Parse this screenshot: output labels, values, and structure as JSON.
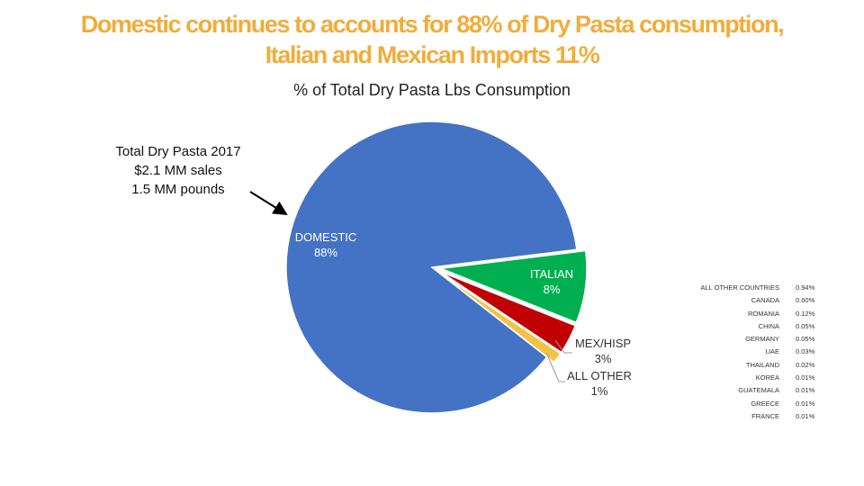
{
  "page_title": {
    "line1": "Domestic continues to accounts for 88% of Dry Pasta consumption,",
    "line2": "Italian and Mexican Imports 11%"
  },
  "note": {
    "line1": "Total Dry Pasta 2017",
    "line2": "$2.1 MM sales",
    "line3": "1.5 MM pounds"
  },
  "colors": {
    "title": "#f0ad3c",
    "domestic": "#4472c4",
    "italian": "#00b050",
    "mex_hisp": "#c00000",
    "all_other": "#f5c242"
  },
  "chart_data": {
    "type": "pie",
    "title": "% of Total Dry Pasta Lbs Consumption",
    "slices": [
      {
        "label": "DOMESTIC",
        "value_label": "88%",
        "value": 87.5,
        "color": "#4472c4",
        "label_color": "#ffffff"
      },
      {
        "label": "ITALIAN",
        "value_label": "8%",
        "value": 8.0,
        "color": "#00b050",
        "label_color": "#ffffff"
      },
      {
        "label": "MEX/HISP",
        "value_label": "3%",
        "value": 3.3,
        "color": "#c00000",
        "label_color": "#333333"
      },
      {
        "label": "ALL OTHER",
        "value_label": "1%",
        "value": 1.2,
        "color": "#f5c242",
        "label_color": "#333333"
      }
    ]
  },
  "breakdown_table": {
    "rows": [
      {
        "country": "ALL OTHER COUNTRIES",
        "pct": "0.94%"
      },
      {
        "country": "CANADA",
        "pct": "0.60%"
      },
      {
        "country": "ROMANIA",
        "pct": "0.12%"
      },
      {
        "country": "CHINA",
        "pct": "0.05%"
      },
      {
        "country": "GERMANY",
        "pct": "0.05%"
      },
      {
        "country": "UAE",
        "pct": "0.03%"
      },
      {
        "country": "THAILAND",
        "pct": "0.02%"
      },
      {
        "country": "KOREA",
        "pct": "0.01%"
      },
      {
        "country": "GUATEMALA",
        "pct": "0.01%"
      },
      {
        "country": "GREECE",
        "pct": "0.01%"
      },
      {
        "country": "FRANCE",
        "pct": "0.01%"
      }
    ]
  }
}
